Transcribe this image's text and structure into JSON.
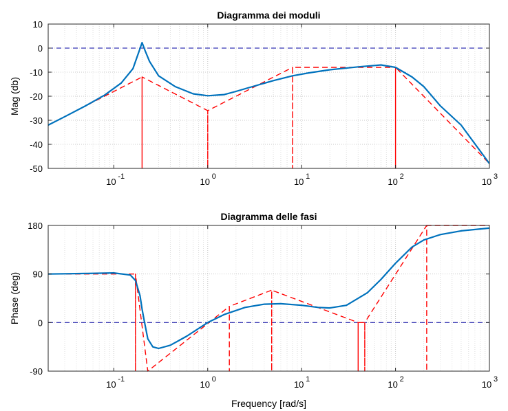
{
  "chart_data": [
    {
      "type": "line",
      "title": "Diagramma dei moduli",
      "xlabel": "",
      "ylabel": "Mag (db)",
      "x_scale": "log",
      "xlim": [
        0.02,
        1000
      ],
      "ylim": [
        -50,
        10
      ],
      "x_tick_labels": [
        "10",
        "10",
        "10",
        "10",
        "10"
      ],
      "x_tick_exponents": [
        "-1",
        "0",
        "1",
        "2",
        "3"
      ],
      "x_ticks": [
        0.1,
        1,
        10,
        100,
        1000
      ],
      "y_ticks": [
        10,
        0,
        -10,
        -20,
        -30,
        -40,
        -50
      ],
      "y_tick_labels": [
        "10",
        "0",
        "-10",
        "-20",
        "-30",
        "-40",
        "-50"
      ],
      "grid": true,
      "series": [
        {
          "style": "solid",
          "color": "#0072BD",
          "x": [
            0.02,
            0.03,
            0.05,
            0.08,
            0.12,
            0.16,
            0.185,
            0.2,
            0.215,
            0.24,
            0.3,
            0.45,
            0.7,
            1,
            1.5,
            2,
            3,
            5,
            8,
            12,
            20,
            40,
            70,
            100,
            150,
            200,
            300,
            500,
            1000
          ],
          "y": [
            -32,
            -28.5,
            -24,
            -19.5,
            -14.5,
            -8.5,
            -1.5,
            2.3,
            -1,
            -5.5,
            -11.5,
            -16,
            -19,
            -19.8,
            -19.3,
            -18,
            -16,
            -13.5,
            -11.5,
            -10.3,
            -9,
            -7.8,
            -7,
            -8,
            -12,
            -16,
            -24,
            -32,
            -48
          ]
        },
        {
          "style": "dashed",
          "color": "#FF0000",
          "x": [
            0.02,
            0.2,
            0.2,
            0.2,
            1,
            1,
            1,
            8,
            8,
            8,
            100,
            100,
            100,
            1000
          ],
          "y": [
            -32,
            -12,
            -50,
            -12,
            -26,
            -50,
            -26,
            -8,
            -50,
            -8,
            -8,
            -50,
            -8,
            -48
          ]
        },
        {
          "style": "dashed",
          "color": "#0000A0",
          "x": [
            0.02,
            1000
          ],
          "y": [
            0,
            0
          ]
        }
      ]
    },
    {
      "type": "line",
      "title": "Diagramma delle fasi",
      "xlabel": "Frequency [rad/s]",
      "ylabel": "Phase (deg)",
      "x_scale": "log",
      "xlim": [
        0.02,
        1000
      ],
      "ylim": [
        -90,
        180
      ],
      "x_tick_labels": [
        "10",
        "10",
        "10",
        "10",
        "10"
      ],
      "x_tick_exponents": [
        "-1",
        "0",
        "1",
        "2",
        "3"
      ],
      "x_ticks": [
        0.1,
        1,
        10,
        100,
        1000
      ],
      "y_ticks": [
        180,
        90,
        0,
        -90
      ],
      "y_tick_labels": [
        "180",
        "90",
        "0",
        "-90"
      ],
      "grid": true,
      "series": [
        {
          "style": "solid",
          "color": "#0072BD",
          "x": [
            0.02,
            0.05,
            0.1,
            0.15,
            0.17,
            0.19,
            0.2,
            0.21,
            0.23,
            0.26,
            0.3,
            0.4,
            0.6,
            1,
            1.5,
            2.5,
            4,
            6,
            10,
            15,
            20,
            30,
            50,
            70,
            100,
            150,
            200,
            300,
            500,
            1000
          ],
          "y": [
            90,
            91,
            92,
            88,
            78,
            50,
            25,
            5,
            -30,
            -45,
            -48,
            -42,
            -25,
            0,
            15,
            28,
            34,
            35,
            32,
            28,
            27,
            32,
            55,
            80,
            110,
            140,
            153,
            163,
            170,
            175
          ]
        },
        {
          "style": "dashed",
          "color": "#FF0000",
          "x": [
            0.02,
            0.17,
            0.17,
            0.17,
            0.23,
            0.23,
            0.23,
            1.7,
            1.7,
            1.7,
            4.8,
            4.8,
            4.8,
            40,
            40,
            40,
            47,
            47,
            47,
            215,
            215,
            215,
            1000
          ],
          "y": [
            90,
            90,
            -90,
            90,
            -90,
            -90,
            -90,
            30,
            -90,
            30,
            60,
            -90,
            60,
            0,
            -90,
            0,
            0,
            -90,
            0,
            180,
            -90,
            180,
            180
          ]
        },
        {
          "style": "dashed",
          "color": "#0000A0",
          "x": [
            0.02,
            1000
          ],
          "y": [
            0,
            0
          ]
        },
        {
          "style": "dashed",
          "color": "#0000A0",
          "x": [
            0.02,
            1000
          ],
          "y": [
            180,
            180
          ]
        }
      ]
    }
  ]
}
